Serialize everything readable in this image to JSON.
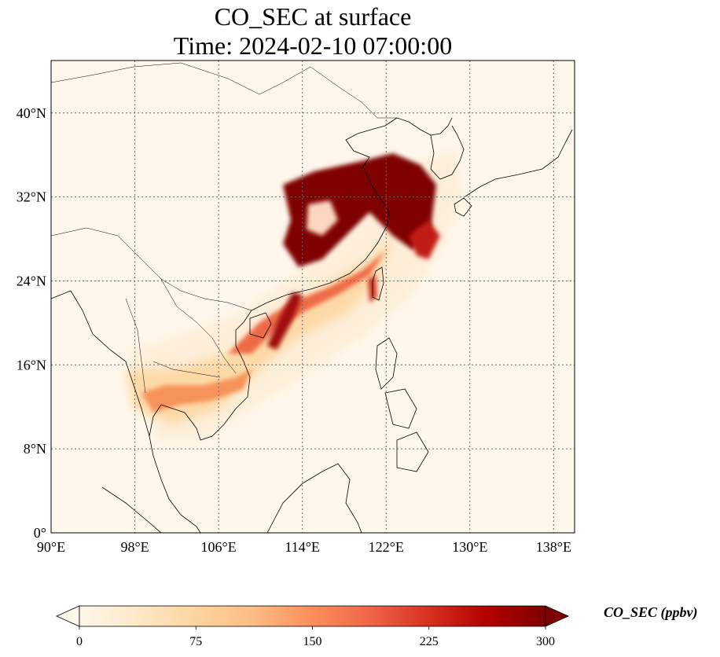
{
  "title": {
    "line1": "CO_SEC at surface",
    "line2": "Time: 2024-02-10 07:00:00"
  },
  "map": {
    "lon_range": [
      90,
      140
    ],
    "lat_range": [
      0,
      45
    ],
    "grid": true,
    "colormap": "OrRd",
    "x_ticks": [
      "90°E",
      "98°E",
      "106°E",
      "114°E",
      "122°E",
      "130°E",
      "138°E"
    ],
    "x_tick_values": [
      90,
      98,
      106,
      114,
      122,
      130,
      138
    ],
    "y_ticks": [
      "0°",
      "8°N",
      "16°N",
      "24°N",
      "32°N",
      "40°N"
    ],
    "y_tick_values": [
      0,
      8,
      16,
      24,
      32,
      40
    ]
  },
  "colorbar": {
    "label": "CO_SEC (ppbv)",
    "ticks": [
      "0",
      "75",
      "150",
      "225",
      "300"
    ],
    "tick_values": [
      0,
      75,
      150,
      225,
      300
    ],
    "vmin": 0,
    "vmax": 300,
    "extend": "both",
    "stops": [
      "#fff7ec",
      "#fee8c8",
      "#fdd49e",
      "#fdbb84",
      "#fc8d59",
      "#ef6548",
      "#d7301f",
      "#b30000",
      "#7f0000"
    ]
  }
}
